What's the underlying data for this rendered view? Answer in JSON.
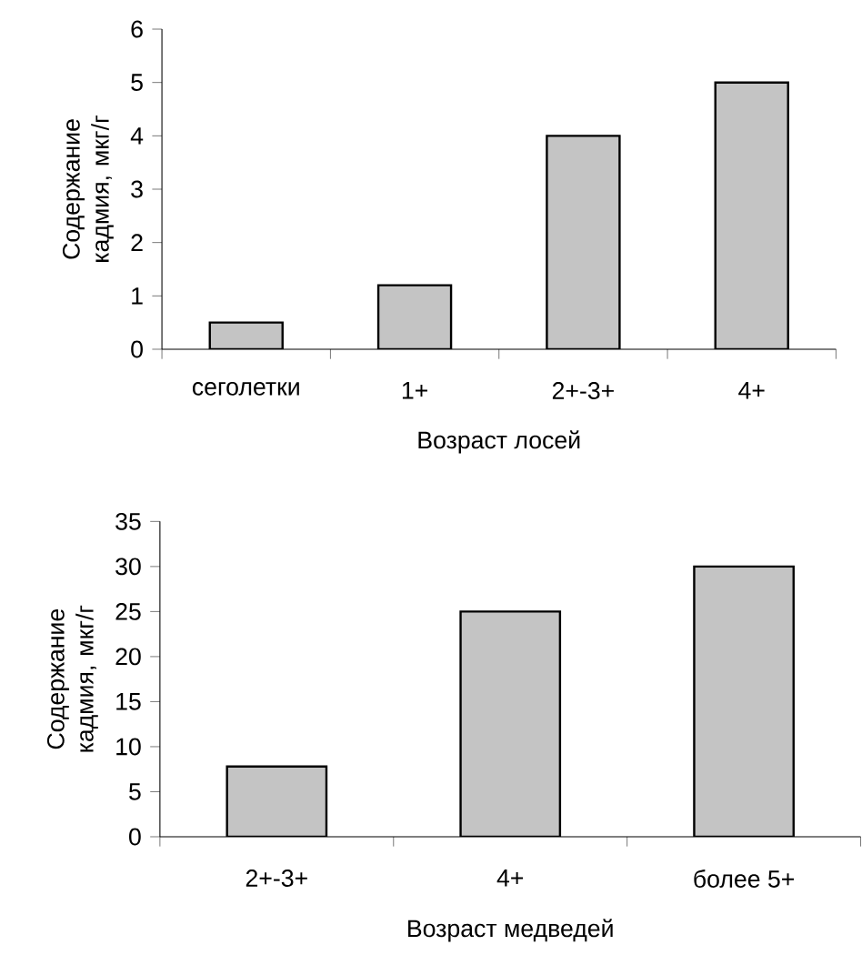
{
  "chart_data": [
    {
      "type": "bar",
      "xlabel": "Возраст лосей",
      "ylabel": "Содержание кадмия, мкг/г",
      "categories": [
        "сеголетки",
        "1+",
        "2+-3+",
        "4+"
      ],
      "values": [
        0.5,
        1.2,
        4,
        5
      ],
      "color": "#c4c4c4",
      "ylim": [
        0,
        6
      ],
      "yticks": [
        0,
        1,
        2,
        3,
        4,
        5,
        6
      ]
    },
    {
      "type": "bar",
      "xlabel": "Возраст медведей",
      "ylabel": "Содержание кадмия, мкг/г",
      "categories": [
        "2+-3+",
        "4+",
        "более 5+"
      ],
      "values": [
        7.8,
        25,
        30
      ],
      "color": "#c4c4c4",
      "ylim": [
        0,
        35
      ],
      "yticks": [
        0,
        5,
        10,
        15,
        20,
        25,
        30,
        35
      ]
    }
  ]
}
